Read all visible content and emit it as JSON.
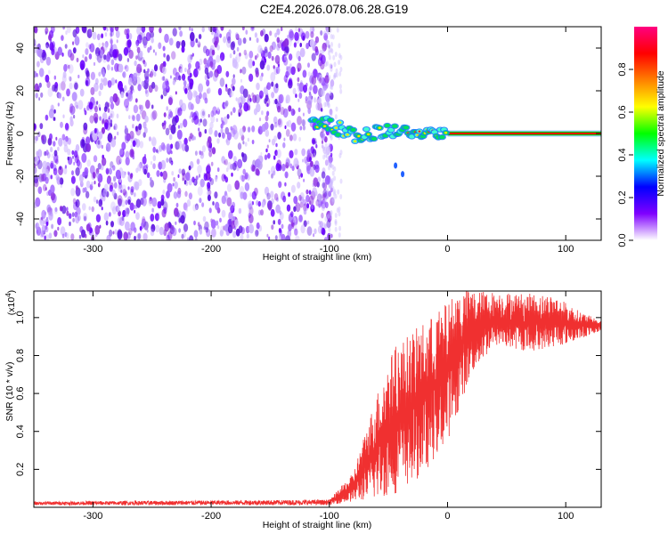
{
  "title": "C2E4.2026.078.06.28.G19",
  "chart_data": [
    {
      "type": "heatmap",
      "name": "spectrogram",
      "xlabel": "Height of straight line (km)",
      "ylabel": "Frequency (Hz)",
      "xlim": [
        -350,
        130
      ],
      "ylim": [
        -50,
        50
      ],
      "xticks": [
        -300,
        -200,
        -100,
        0,
        100
      ],
      "yticks": [
        -40,
        -20,
        0,
        20,
        40
      ],
      "noise_region_x": [
        -350,
        -105
      ],
      "signal_track": [
        {
          "x": -115,
          "y": 7
        },
        {
          "x": -105,
          "y": 5
        },
        {
          "x": -95,
          "y": 3
        },
        {
          "x": -85,
          "y": 1
        },
        {
          "x": -75,
          "y": -1
        },
        {
          "x": -65,
          "y": -1
        },
        {
          "x": -55,
          "y": 1
        },
        {
          "x": -45,
          "y": 2
        },
        {
          "x": -35,
          "y": 1
        },
        {
          "x": -25,
          "y": 0
        },
        {
          "x": -15,
          "y": 0
        },
        {
          "x": 0,
          "y": 0
        },
        {
          "x": 130,
          "y": 0
        }
      ],
      "outliers": [
        {
          "x": -44,
          "y": -15
        },
        {
          "x": -38,
          "y": -19
        }
      ],
      "colorbar": {
        "label": "Normalized spectral amplitude",
        "ticks": [
          "0.0",
          "0.2",
          "0.4",
          "0.6",
          "0.8"
        ],
        "range": [
          0,
          1
        ],
        "colors": [
          "#ffffff",
          "#7f00ff",
          "#0000ff",
          "#00ffff",
          "#00ff00",
          "#ffff00",
          "#ff8000",
          "#ff0000",
          "#ff0080"
        ]
      }
    },
    {
      "type": "line",
      "name": "snr",
      "xlabel": "Height of straight line (km)",
      "ylabel": "SNR (10 * v/v)",
      "yscale_label": "(x10",
      "yscale_exp": "4",
      "yscale_close": ")",
      "xlim": [
        -350,
        130
      ],
      "ylim": [
        0,
        1.14
      ],
      "xticks": [
        -300,
        -200,
        -100,
        0,
        100
      ],
      "yticks": [
        0.2,
        0.4,
        0.6,
        0.8,
        1.0
      ],
      "color": "#f03030",
      "envelope_low": [
        {
          "x": -350,
          "y": 0.012
        },
        {
          "x": -100,
          "y": 0.012
        },
        {
          "x": -80,
          "y": 0.03
        },
        {
          "x": -60,
          "y": 0.04
        },
        {
          "x": -40,
          "y": 0.08
        },
        {
          "x": -20,
          "y": 0.18
        },
        {
          "x": 0,
          "y": 0.35
        },
        {
          "x": 20,
          "y": 0.7
        },
        {
          "x": 40,
          "y": 0.85
        },
        {
          "x": 70,
          "y": 0.82
        },
        {
          "x": 100,
          "y": 0.86
        },
        {
          "x": 130,
          "y": 0.93
        }
      ],
      "envelope_high": [
        {
          "x": -350,
          "y": 0.03
        },
        {
          "x": -100,
          "y": 0.04
        },
        {
          "x": -80,
          "y": 0.18
        },
        {
          "x": -60,
          "y": 0.6
        },
        {
          "x": -45,
          "y": 0.85
        },
        {
          "x": -25,
          "y": 0.95
        },
        {
          "x": -5,
          "y": 1.05
        },
        {
          "x": 10,
          "y": 1.15
        },
        {
          "x": 30,
          "y": 1.14
        },
        {
          "x": 60,
          "y": 1.13
        },
        {
          "x": 90,
          "y": 1.12
        },
        {
          "x": 110,
          "y": 1.04
        },
        {
          "x": 130,
          "y": 0.98
        }
      ]
    }
  ]
}
